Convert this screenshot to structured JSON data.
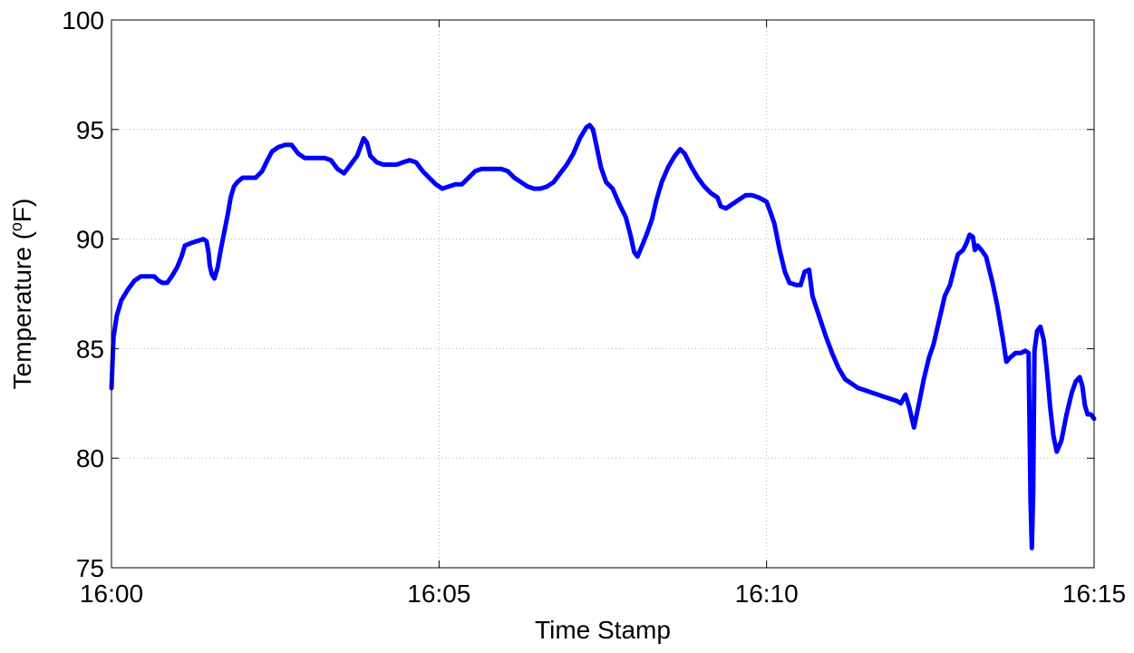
{
  "chart_data": {
    "type": "line",
    "title": "",
    "xlabel": "Time Stamp",
    "ylabel_prefix": "Temperature (",
    "ylabel_sup": "o",
    "ylabel_suffix": "F)",
    "xlim": [
      0,
      15
    ],
    "ylim": [
      75,
      100
    ],
    "grid": true,
    "x_ticks": [
      {
        "value": 0,
        "label": "16:00"
      },
      {
        "value": 5,
        "label": "16:05"
      },
      {
        "value": 10,
        "label": "16:10"
      },
      {
        "value": 15,
        "label": "16:15"
      }
    ],
    "y_ticks": [
      {
        "value": 75,
        "label": "75"
      },
      {
        "value": 80,
        "label": "80"
      },
      {
        "value": 85,
        "label": "85"
      },
      {
        "value": 90,
        "label": "90"
      },
      {
        "value": 95,
        "label": "95"
      },
      {
        "value": 100,
        "label": "100"
      }
    ],
    "series": [
      {
        "color": "#0000ff",
        "x_unit": "minutes after 16:00",
        "points": [
          [
            0.0,
            83.2
          ],
          [
            0.03,
            85.5
          ],
          [
            0.08,
            86.5
          ],
          [
            0.15,
            87.2
          ],
          [
            0.25,
            87.7
          ],
          [
            0.35,
            88.1
          ],
          [
            0.45,
            88.3
          ],
          [
            0.55,
            88.3
          ],
          [
            0.65,
            88.3
          ],
          [
            0.72,
            88.1
          ],
          [
            0.78,
            88.0
          ],
          [
            0.85,
            88.0
          ],
          [
            0.92,
            88.3
          ],
          [
            1.0,
            88.7
          ],
          [
            1.07,
            89.2
          ],
          [
            1.12,
            89.7
          ],
          [
            1.2,
            89.8
          ],
          [
            1.3,
            89.9
          ],
          [
            1.4,
            90.0
          ],
          [
            1.45,
            89.9
          ],
          [
            1.48,
            89.4
          ],
          [
            1.5,
            88.8
          ],
          [
            1.53,
            88.4
          ],
          [
            1.57,
            88.2
          ],
          [
            1.62,
            88.7
          ],
          [
            1.66,
            89.4
          ],
          [
            1.72,
            90.3
          ],
          [
            1.78,
            91.2
          ],
          [
            1.82,
            91.9
          ],
          [
            1.87,
            92.4
          ],
          [
            1.92,
            92.6
          ],
          [
            2.0,
            92.8
          ],
          [
            2.1,
            92.8
          ],
          [
            2.2,
            92.8
          ],
          [
            2.3,
            93.1
          ],
          [
            2.38,
            93.6
          ],
          [
            2.45,
            94.0
          ],
          [
            2.55,
            94.2
          ],
          [
            2.65,
            94.3
          ],
          [
            2.75,
            94.3
          ],
          [
            2.85,
            93.9
          ],
          [
            2.95,
            93.7
          ],
          [
            3.05,
            93.7
          ],
          [
            3.15,
            93.7
          ],
          [
            3.25,
            93.7
          ],
          [
            3.35,
            93.6
          ],
          [
            3.45,
            93.2
          ],
          [
            3.55,
            93.0
          ],
          [
            3.65,
            93.4
          ],
          [
            3.75,
            93.8
          ],
          [
            3.85,
            94.6
          ],
          [
            3.9,
            94.4
          ],
          [
            3.95,
            93.8
          ],
          [
            4.05,
            93.5
          ],
          [
            4.15,
            93.4
          ],
          [
            4.25,
            93.4
          ],
          [
            4.35,
            93.4
          ],
          [
            4.45,
            93.5
          ],
          [
            4.55,
            93.6
          ],
          [
            4.65,
            93.5
          ],
          [
            4.75,
            93.1
          ],
          [
            4.85,
            92.8
          ],
          [
            4.95,
            92.5
          ],
          [
            5.05,
            92.3
          ],
          [
            5.15,
            92.4
          ],
          [
            5.25,
            92.5
          ],
          [
            5.35,
            92.5
          ],
          [
            5.45,
            92.8
          ],
          [
            5.55,
            93.1
          ],
          [
            5.65,
            93.2
          ],
          [
            5.75,
            93.2
          ],
          [
            5.85,
            93.2
          ],
          [
            5.95,
            93.2
          ],
          [
            6.05,
            93.1
          ],
          [
            6.15,
            92.8
          ],
          [
            6.25,
            92.6
          ],
          [
            6.35,
            92.4
          ],
          [
            6.45,
            92.3
          ],
          [
            6.55,
            92.3
          ],
          [
            6.65,
            92.4
          ],
          [
            6.75,
            92.6
          ],
          [
            6.85,
            93.0
          ],
          [
            6.95,
            93.4
          ],
          [
            7.05,
            93.9
          ],
          [
            7.15,
            94.6
          ],
          [
            7.25,
            95.1
          ],
          [
            7.3,
            95.2
          ],
          [
            7.35,
            95.0
          ],
          [
            7.4,
            94.3
          ],
          [
            7.47,
            93.3
          ],
          [
            7.55,
            92.6
          ],
          [
            7.65,
            92.3
          ],
          [
            7.75,
            91.6
          ],
          [
            7.85,
            91.0
          ],
          [
            7.92,
            90.2
          ],
          [
            7.98,
            89.4
          ],
          [
            8.03,
            89.2
          ],
          [
            8.1,
            89.7
          ],
          [
            8.18,
            90.3
          ],
          [
            8.25,
            90.9
          ],
          [
            8.32,
            91.8
          ],
          [
            8.4,
            92.6
          ],
          [
            8.5,
            93.3
          ],
          [
            8.6,
            93.8
          ],
          [
            8.68,
            94.1
          ],
          [
            8.75,
            93.9
          ],
          [
            8.85,
            93.3
          ],
          [
            8.95,
            92.8
          ],
          [
            9.05,
            92.4
          ],
          [
            9.15,
            92.1
          ],
          [
            9.25,
            91.9
          ],
          [
            9.3,
            91.5
          ],
          [
            9.38,
            91.4
          ],
          [
            9.48,
            91.6
          ],
          [
            9.58,
            91.8
          ],
          [
            9.68,
            92.0
          ],
          [
            9.78,
            92.0
          ],
          [
            9.88,
            91.9
          ],
          [
            10.0,
            91.7
          ],
          [
            10.05,
            91.3
          ],
          [
            10.12,
            90.7
          ],
          [
            10.2,
            89.5
          ],
          [
            10.28,
            88.5
          ],
          [
            10.35,
            88.0
          ],
          [
            10.45,
            87.9
          ],
          [
            10.52,
            87.9
          ],
          [
            10.58,
            88.5
          ],
          [
            10.65,
            88.6
          ],
          [
            10.7,
            87.4
          ],
          [
            10.8,
            86.5
          ],
          [
            10.9,
            85.6
          ],
          [
            11.0,
            84.8
          ],
          [
            11.1,
            84.1
          ],
          [
            11.2,
            83.6
          ],
          [
            11.3,
            83.4
          ],
          [
            11.4,
            83.2
          ],
          [
            11.5,
            83.1
          ],
          [
            11.6,
            83.0
          ],
          [
            11.7,
            82.9
          ],
          [
            11.8,
            82.8
          ],
          [
            11.9,
            82.7
          ],
          [
            12.0,
            82.6
          ],
          [
            12.05,
            82.5
          ],
          [
            12.12,
            82.9
          ],
          [
            12.18,
            82.3
          ],
          [
            12.25,
            81.4
          ],
          [
            12.32,
            82.4
          ],
          [
            12.4,
            83.6
          ],
          [
            12.48,
            84.6
          ],
          [
            12.55,
            85.2
          ],
          [
            12.65,
            86.5
          ],
          [
            12.72,
            87.4
          ],
          [
            12.8,
            87.9
          ],
          [
            12.85,
            88.5
          ],
          [
            12.92,
            89.3
          ],
          [
            13.0,
            89.5
          ],
          [
            13.05,
            89.8
          ],
          [
            13.1,
            90.2
          ],
          [
            13.15,
            90.1
          ],
          [
            13.18,
            89.5
          ],
          [
            13.22,
            89.7
          ],
          [
            13.28,
            89.5
          ],
          [
            13.35,
            89.2
          ],
          [
            13.45,
            88.0
          ],
          [
            13.52,
            87.0
          ],
          [
            13.6,
            85.6
          ],
          [
            13.66,
            84.4
          ],
          [
            13.72,
            84.6
          ],
          [
            13.8,
            84.8
          ],
          [
            13.88,
            84.8
          ],
          [
            13.95,
            84.9
          ],
          [
            14.0,
            84.8
          ],
          [
            14.03,
            78.0
          ],
          [
            14.05,
            75.9
          ],
          [
            14.07,
            78.5
          ],
          [
            14.09,
            84.9
          ],
          [
            14.13,
            85.8
          ],
          [
            14.18,
            86.0
          ],
          [
            14.23,
            85.4
          ],
          [
            14.28,
            84.0
          ],
          [
            14.33,
            82.3
          ],
          [
            14.38,
            81.0
          ],
          [
            14.43,
            80.3
          ],
          [
            14.5,
            80.8
          ],
          [
            14.58,
            82.0
          ],
          [
            14.66,
            83.0
          ],
          [
            14.72,
            83.5
          ],
          [
            14.78,
            83.7
          ],
          [
            14.82,
            83.3
          ],
          [
            14.86,
            82.4
          ],
          [
            14.9,
            82.0
          ],
          [
            14.95,
            82.0
          ],
          [
            15.0,
            81.8
          ]
        ]
      }
    ]
  }
}
